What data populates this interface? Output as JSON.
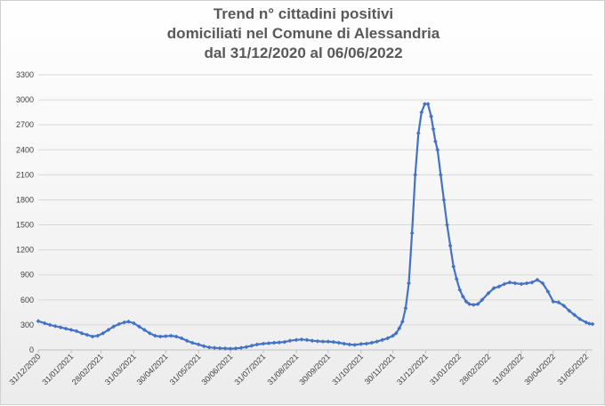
{
  "chart_data": {
    "type": "line",
    "title_lines": [
      "Trend n° cittadini positivi",
      "domiciliati nel Comune di Alessandria",
      "dal 31/12/2020 al 06/06/2022"
    ],
    "xlabel": "",
    "ylabel": "",
    "ylim": [
      0,
      3300
    ],
    "yticks": [
      0,
      300,
      600,
      900,
      1200,
      1500,
      1800,
      2100,
      2400,
      2700,
      3000,
      3300
    ],
    "xlim": [
      "2020-12-31",
      "2022-06-06"
    ],
    "xtick_labels": [
      "31/12/2020",
      "31/01/2021",
      "28/02/2021",
      "31/03/2021",
      "30/04/2021",
      "31/05/2021",
      "30/06/2021",
      "31/07/2021",
      "31/08/2021",
      "30/09/2021",
      "31/10/2021",
      "30/11/2021",
      "31/12/2021",
      "31/01/2022",
      "28/02/2022",
      "31/03/2022",
      "30/04/2022",
      "31/05/2022"
    ],
    "xtick_dates": [
      "2020-12-31",
      "2021-01-31",
      "2021-02-28",
      "2021-03-31",
      "2021-04-30",
      "2021-05-31",
      "2021-06-30",
      "2021-07-31",
      "2021-08-31",
      "2021-09-30",
      "2021-10-31",
      "2021-11-30",
      "2021-12-31",
      "2022-01-31",
      "2022-02-28",
      "2022-03-31",
      "2022-04-30",
      "2022-05-31"
    ],
    "grid": true,
    "legend": "none",
    "colors": {
      "line": "#4472c4",
      "grid": "#d9d9d9",
      "axis": "#bfbfbf"
    },
    "series": [
      {
        "x": [
          "2020-12-31",
          "2021-01-06",
          "2021-01-11",
          "2021-01-16",
          "2021-01-21",
          "2021-01-26",
          "2021-01-31",
          "2021-02-05",
          "2021-02-10",
          "2021-02-15",
          "2021-02-20",
          "2021-02-25",
          "2021-03-02",
          "2021-03-07",
          "2021-03-12",
          "2021-03-17",
          "2021-03-22",
          "2021-03-26",
          "2021-03-31",
          "2021-04-05",
          "2021-04-10",
          "2021-04-15",
          "2021-04-20",
          "2021-04-25",
          "2021-04-30",
          "2021-05-05",
          "2021-05-10",
          "2021-05-15",
          "2021-05-20",
          "2021-05-25",
          "2021-05-31",
          "2021-06-05",
          "2021-06-10",
          "2021-06-15",
          "2021-06-20",
          "2021-06-25",
          "2021-06-30",
          "2021-07-05",
          "2021-07-10",
          "2021-07-15",
          "2021-07-20",
          "2021-07-25",
          "2021-07-31",
          "2021-08-05",
          "2021-08-10",
          "2021-08-15",
          "2021-08-20",
          "2021-08-25",
          "2021-08-31",
          "2021-09-05",
          "2021-09-10",
          "2021-09-15",
          "2021-09-20",
          "2021-09-25",
          "2021-09-30",
          "2021-10-05",
          "2021-10-10",
          "2021-10-15",
          "2021-10-20",
          "2021-10-25",
          "2021-10-31",
          "2021-11-05",
          "2021-11-10",
          "2021-11-15",
          "2021-11-20",
          "2021-11-25",
          "2021-11-30",
          "2021-12-03",
          "2021-12-06",
          "2021-12-09",
          "2021-12-12",
          "2021-12-15",
          "2021-12-18",
          "2021-12-21",
          "2021-12-24",
          "2021-12-27",
          "2021-12-30",
          "2022-01-02",
          "2022-01-05",
          "2022-01-07",
          "2022-01-09",
          "2022-01-11",
          "2022-01-14",
          "2022-01-17",
          "2022-01-20",
          "2022-01-23",
          "2022-01-26",
          "2022-01-29",
          "2022-02-01",
          "2022-02-04",
          "2022-02-07",
          "2022-02-10",
          "2022-02-14",
          "2022-02-18",
          "2022-02-22",
          "2022-02-28",
          "2022-03-05",
          "2022-03-10",
          "2022-03-15",
          "2022-03-20",
          "2022-03-25",
          "2022-03-31",
          "2022-04-05",
          "2022-04-10",
          "2022-04-15",
          "2022-04-20",
          "2022-04-25",
          "2022-04-30",
          "2022-05-05",
          "2022-05-10",
          "2022-05-15",
          "2022-05-20",
          "2022-05-25",
          "2022-05-31",
          "2022-06-03",
          "2022-06-06"
        ],
        "values": [
          345,
          320,
          300,
          285,
          270,
          255,
          240,
          225,
          200,
          180,
          160,
          170,
          200,
          240,
          280,
          310,
          330,
          340,
          320,
          280,
          240,
          200,
          170,
          160,
          165,
          170,
          160,
          140,
          110,
          85,
          65,
          45,
          30,
          25,
          20,
          18,
          15,
          18,
          25,
          35,
          50,
          65,
          75,
          80,
          85,
          90,
          95,
          110,
          120,
          125,
          120,
          110,
          105,
          100,
          100,
          95,
          85,
          75,
          65,
          60,
          70,
          75,
          85,
          100,
          120,
          140,
          170,
          200,
          260,
          340,
          500,
          800,
          1400,
          2100,
          2600,
          2850,
          2950,
          2950,
          2800,
          2650,
          2500,
          2400,
          2100,
          1800,
          1500,
          1250,
          1000,
          850,
          720,
          640,
          580,
          550,
          540,
          550,
          600,
          680,
          740,
          760,
          790,
          810,
          800,
          790,
          800,
          810,
          840,
          800,
          700,
          580,
          570,
          530,
          470,
          420,
          370,
          330,
          315,
          310
        ]
      }
    ]
  }
}
